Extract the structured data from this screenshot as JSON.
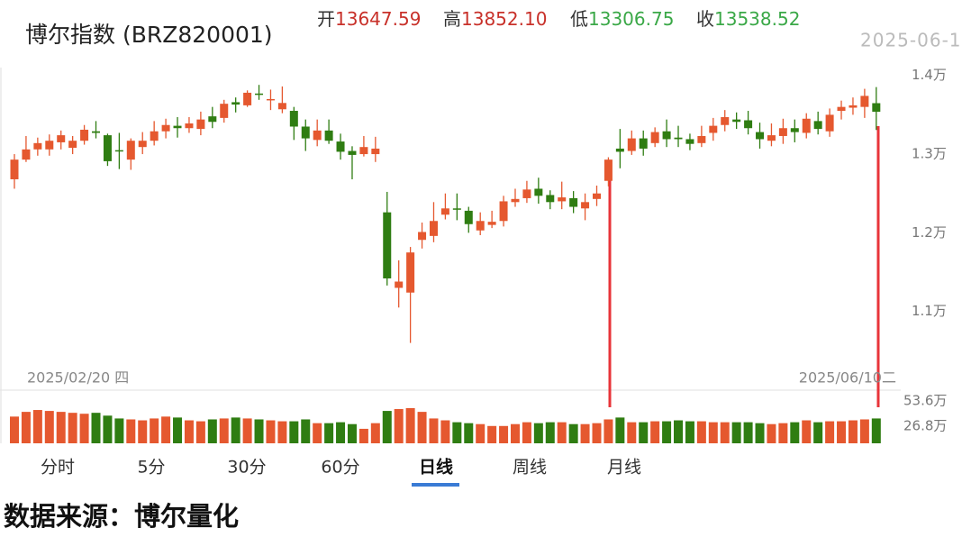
{
  "header": {
    "title": "博尔指数 (BRZ820001)",
    "date": "2025-06-1",
    "quote": [
      {
        "label": "开",
        "value": "13647.59",
        "color": "#c8312a"
      },
      {
        "label": "高",
        "value": "13852.10",
        "color": "#c8312a"
      },
      {
        "label": "低",
        "value": "13306.75",
        "color": "#3aa847"
      },
      {
        "label": "收",
        "value": "13538.52",
        "color": "#3aa847"
      }
    ]
  },
  "chart_data": [
    {
      "type": "candlestick",
      "up_color": "#e5582f",
      "down_color": "#2f7d12",
      "categories": [
        "2025/02/20 四",
        null,
        null,
        null,
        null,
        null,
        null,
        null,
        null,
        null,
        null,
        null,
        null,
        null,
        null,
        null,
        null,
        null,
        null,
        null,
        null,
        null,
        null,
        null,
        null,
        null,
        null,
        null,
        null,
        null,
        null,
        null,
        null,
        null,
        null,
        null,
        null,
        null,
        null,
        null,
        null,
        null,
        null,
        null,
        null,
        null,
        null,
        null,
        null,
        null,
        null,
        null,
        null,
        null,
        null,
        null,
        null,
        null,
        null,
        null,
        null,
        null,
        null,
        null,
        null,
        null,
        null,
        null,
        null,
        null,
        null,
        null,
        null,
        null,
        "2025/06/10二"
      ],
      "open": [
        12680,
        12930,
        13060,
        13060,
        13150,
        13080,
        13170,
        13290,
        13240,
        13050,
        12930,
        13090,
        13170,
        13290,
        13360,
        13330,
        13320,
        13480,
        13460,
        13660,
        13620,
        13770,
        13690,
        13570,
        13550,
        13350,
        13180,
        13300,
        13160,
        13040,
        13000,
        13000,
        12260,
        11300,
        11240,
        11910,
        11960,
        12230,
        12310,
        12280,
        12030,
        12100,
        12150,
        12390,
        12440,
        12560,
        12480,
        12400,
        12440,
        12310,
        12430,
        12660,
        13070,
        13040,
        13200,
        13140,
        13290,
        13210,
        13190,
        13140,
        13270,
        13370,
        13440,
        13430,
        13280,
        13170,
        13230,
        13330,
        13270,
        13420,
        13290,
        13550,
        13590,
        13600,
        13647.59
      ],
      "high": [
        13000,
        13230,
        13210,
        13250,
        13300,
        13230,
        13370,
        13420,
        13260,
        13270,
        13200,
        13280,
        13420,
        13450,
        13470,
        13470,
        13540,
        13600,
        13690,
        13720,
        13810,
        13880,
        13820,
        13860,
        13600,
        13440,
        13440,
        13440,
        13260,
        13100,
        13230,
        13220,
        12520,
        11650,
        11820,
        12130,
        12390,
        12500,
        12500,
        12330,
        12260,
        12280,
        12470,
        12560,
        12660,
        12700,
        12540,
        12650,
        12530,
        12500,
        12600,
        12960,
        13320,
        13300,
        13300,
        13340,
        13440,
        13360,
        13260,
        13360,
        13460,
        13560,
        13530,
        13550,
        13400,
        13390,
        13450,
        13440,
        13520,
        13540,
        13580,
        13680,
        13720,
        13830,
        13852.1
      ],
      "low": [
        12560,
        12900,
        12980,
        12980,
        13060,
        13000,
        13120,
        13200,
        12850,
        12810,
        12800,
        13000,
        13110,
        13200,
        13210,
        13270,
        13240,
        13330,
        13400,
        13530,
        13600,
        13690,
        13560,
        13520,
        13180,
        13040,
        13100,
        13130,
        12930,
        12680,
        12970,
        12900,
        11330,
        11050,
        10600,
        11800,
        11880,
        12170,
        12160,
        12000,
        11970,
        12060,
        12080,
        12330,
        12380,
        12370,
        12300,
        12300,
        12250,
        12160,
        12340,
        12590,
        12820,
        12990,
        12980,
        13090,
        13090,
        13090,
        13050,
        13090,
        13170,
        13290,
        13320,
        13250,
        13070,
        13100,
        13130,
        13150,
        13200,
        13250,
        13220,
        13440,
        13500,
        13460,
        13306.75
      ],
      "close": [
        12930,
        13060,
        13140,
        13170,
        13240,
        13170,
        13310,
        13270,
        12910,
        13040,
        13170,
        13170,
        13290,
        13370,
        13330,
        13390,
        13440,
        13410,
        13640,
        13630,
        13780,
        13760,
        13700,
        13650,
        13350,
        13200,
        13300,
        13170,
        13030,
        12990,
        13090,
        13070,
        11420,
        11380,
        11750,
        12010,
        12150,
        12310,
        12300,
        12110,
        12150,
        12140,
        12400,
        12430,
        12550,
        12470,
        12390,
        12450,
        12330,
        12390,
        12500,
        12930,
        13030,
        13200,
        13070,
        13280,
        13190,
        13190,
        13130,
        13230,
        13360,
        13470,
        13410,
        13330,
        13190,
        13240,
        13330,
        13280,
        13450,
        13320,
        13500,
        13600,
        13620,
        13740,
        13538.52
      ],
      "ylim": [
        10000,
        14100
      ],
      "yticks": [
        {
          "value": 14000,
          "label": "1.4万"
        },
        {
          "value": 13000,
          "label": "1.3万"
        },
        {
          "value": 12000,
          "label": "1.2万"
        },
        {
          "value": 11000,
          "label": "1.1万"
        }
      ]
    },
    {
      "type": "bar",
      "values": [
        370000,
        420000,
        440000,
        430000,
        420000,
        410000,
        400000,
        410000,
        380000,
        350000,
        340000,
        330000,
        350000,
        370000,
        360000,
        330000,
        320000,
        340000,
        350000,
        360000,
        350000,
        340000,
        330000,
        320000,
        320000,
        340000,
        300000,
        300000,
        310000,
        290000,
        240000,
        300000,
        430000,
        450000,
        460000,
        420000,
        350000,
        330000,
        310000,
        300000,
        290000,
        270000,
        270000,
        290000,
        310000,
        300000,
        310000,
        310000,
        290000,
        290000,
        300000,
        340000,
        360000,
        310000,
        310000,
        320000,
        320000,
        330000,
        320000,
        320000,
        310000,
        310000,
        310000,
        310000,
        300000,
        290000,
        300000,
        310000,
        330000,
        310000,
        320000,
        320000,
        330000,
        340000,
        350000
      ],
      "ylim": [
        86000,
        584000
      ],
      "yticks": [
        {
          "value": 536000,
          "label": "53.6万"
        },
        {
          "value": 268000,
          "label": "26.8万"
        }
      ]
    }
  ],
  "tabs": [
    "分时",
    "5分",
    "30分",
    "60分",
    "日线",
    "周线",
    "月线"
  ],
  "active_tab": 4,
  "footer": "数据来源：博尔量化"
}
